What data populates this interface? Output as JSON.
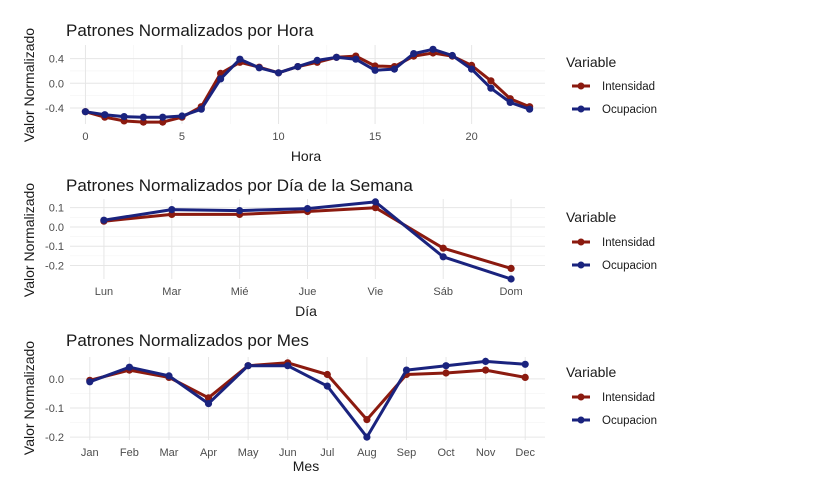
{
  "colors": {
    "intensidad": "#8b1a0f",
    "ocupacion": "#1a237e",
    "grid_major": "#e6e6e6",
    "grid_minor": "#f3f3f3"
  },
  "legend": {
    "title": "Variable",
    "items": [
      "Intensidad",
      "Ocupacion"
    ]
  },
  "chart_data": [
    {
      "id": "hora",
      "type": "line",
      "title": "Patrones Normalizados por Hora",
      "xlabel": "Hora",
      "ylabel": "Valor Normalizado",
      "x": [
        0,
        1,
        2,
        3,
        4,
        5,
        6,
        7,
        8,
        9,
        10,
        11,
        12,
        13,
        14,
        15,
        16,
        17,
        18,
        19,
        20,
        21,
        22,
        23
      ],
      "xticks": [
        0,
        5,
        10,
        15,
        20
      ],
      "xlim": [
        -0.8,
        23.8
      ],
      "yticks": [
        -0.4,
        0.0,
        0.4
      ],
      "ytick_labels": [
        "-0.4",
        "0.0",
        "0.4"
      ],
      "ylim": [
        -0.66,
        0.62
      ],
      "series": [
        {
          "name": "Intensidad",
          "values": [
            -0.46,
            -0.55,
            -0.61,
            -0.63,
            -0.63,
            -0.55,
            -0.38,
            0.16,
            0.34,
            0.26,
            0.17,
            0.27,
            0.34,
            0.42,
            0.44,
            0.28,
            0.27,
            0.44,
            0.49,
            0.44,
            0.29,
            0.04,
            -0.25,
            -0.38
          ]
        },
        {
          "name": "Ocupacion",
          "values": [
            -0.46,
            -0.51,
            -0.54,
            -0.55,
            -0.55,
            -0.53,
            -0.42,
            0.07,
            0.39,
            0.25,
            0.17,
            0.27,
            0.37,
            0.42,
            0.39,
            0.21,
            0.23,
            0.48,
            0.55,
            0.45,
            0.23,
            -0.08,
            -0.31,
            -0.42
          ]
        }
      ],
      "grid": true
    },
    {
      "id": "dia",
      "type": "line",
      "title": "Patrones Normalizados por Día de la Semana",
      "xlabel": "Día",
      "ylabel": "Valor Normalizado",
      "categories": [
        "Lun",
        "Mar",
        "Mié",
        "Jue",
        "Vie",
        "Sáb",
        "Dom"
      ],
      "yticks": [
        -0.2,
        -0.1,
        0.0,
        0.1
      ],
      "ytick_labels": [
        "-0.2",
        "-0.1",
        "0.0",
        "0.1"
      ],
      "ylim": [
        -0.27,
        0.145
      ],
      "series": [
        {
          "name": "Intensidad",
          "values": [
            0.03,
            0.065,
            0.065,
            0.08,
            0.1,
            -0.11,
            -0.215
          ]
        },
        {
          "name": "Ocupacion",
          "values": [
            0.035,
            0.09,
            0.085,
            0.095,
            0.13,
            -0.155,
            -0.27
          ]
        }
      ],
      "grid": true
    },
    {
      "id": "mes",
      "type": "line",
      "title": "Patrones Normalizados por Mes",
      "xlabel": "Mes",
      "ylabel": "Valor Normalizado",
      "categories": [
        "Jan",
        "Feb",
        "Mar",
        "Apr",
        "May",
        "Jun",
        "Jul",
        "Aug",
        "Sep",
        "Oct",
        "Nov",
        "Dec"
      ],
      "yticks": [
        -0.2,
        -0.1,
        0.0
      ],
      "ytick_labels": [
        "-0.2",
        "-0.1",
        "0.0"
      ],
      "ylim": [
        -0.21,
        0.075
      ],
      "series": [
        {
          "name": "Intensidad",
          "values": [
            -0.005,
            0.03,
            0.005,
            -0.065,
            0.045,
            0.055,
            0.015,
            -0.14,
            0.015,
            0.02,
            0.03,
            0.005
          ]
        },
        {
          "name": "Ocupacion",
          "values": [
            -0.01,
            0.04,
            0.01,
            -0.085,
            0.045,
            0.045,
            -0.025,
            -0.2,
            0.03,
            0.045,
            0.06,
            0.05
          ]
        }
      ],
      "grid": true
    }
  ]
}
